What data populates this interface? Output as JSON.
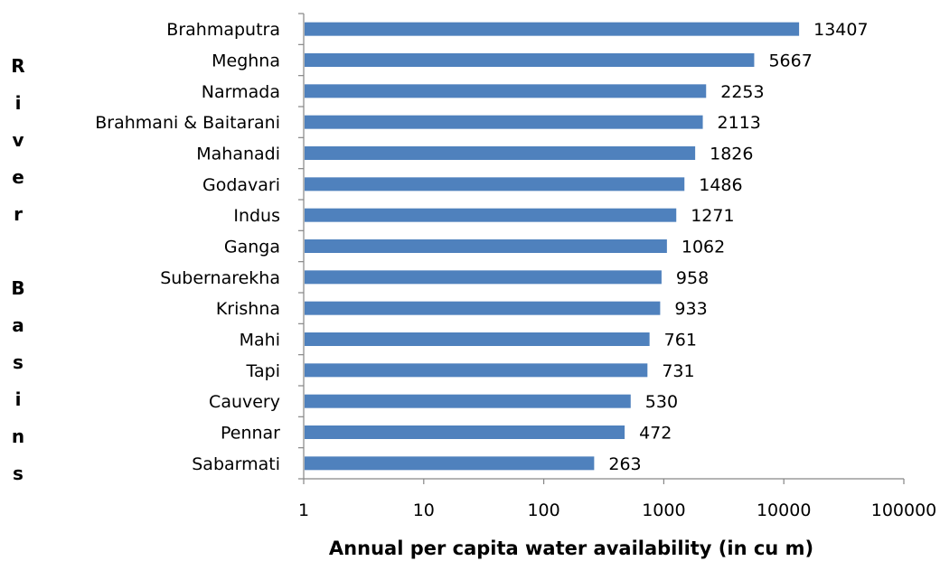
{
  "chart_data": {
    "type": "bar",
    "orientation": "horizontal",
    "title": "",
    "xlabel": "Annual per capita water availability (in cu m)",
    "ylabel": "River Basins",
    "x_scale": "log",
    "xlim": [
      1,
      100000
    ],
    "x_ticks": [
      "1",
      "10",
      "100",
      "1000",
      "10000",
      "100000"
    ],
    "grid": false,
    "legend": "none",
    "bar_color": "#4F81BD",
    "categories": [
      "Brahmaputra",
      "Meghna",
      "Narmada",
      "Brahmani & Baitarani",
      "Mahanadi",
      "Godavari",
      "Indus",
      "Ganga",
      "Subernarekha",
      "Krishna",
      "Mahi",
      "Tapi",
      "Cauvery",
      "Pennar",
      "Sabarmati"
    ],
    "values": [
      13407,
      5667,
      2253,
      2113,
      1826,
      1486,
      1271,
      1062,
      958,
      933,
      761,
      731,
      530,
      472,
      263
    ],
    "data_labels": [
      "13407",
      "5667",
      "2253",
      "2113",
      "1826",
      "1486",
      "1271",
      "1062",
      "958",
      "933",
      "761",
      "731",
      "530",
      "472",
      "263"
    ]
  }
}
